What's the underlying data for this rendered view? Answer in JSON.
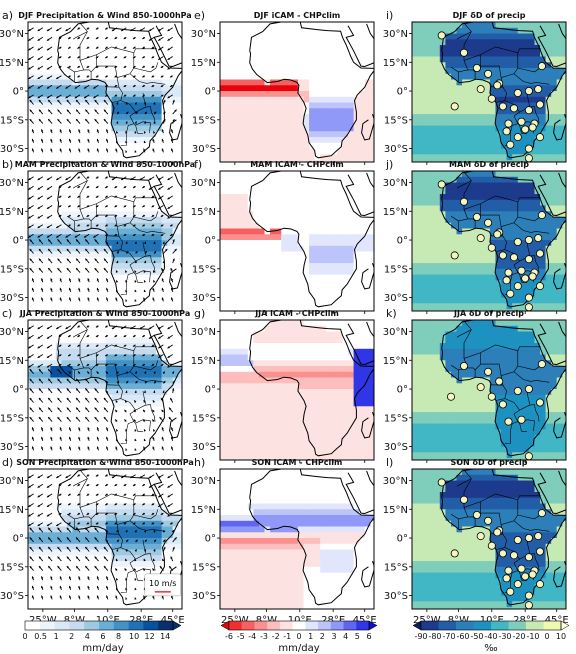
{
  "panels": [
    {
      "letter": "a)",
      "title": "DJF Precipitation & Wind 850-1000hPa",
      "kind": "precip",
      "season": "DJF"
    },
    {
      "letter": "b)",
      "title": "MAM Precipitation & Wind 850-1000hPa",
      "kind": "precip",
      "season": "MAM"
    },
    {
      "letter": "c)",
      "title": "JJA Precipitation & Wind 850-1000hPa",
      "kind": "precip",
      "season": "JJA"
    },
    {
      "letter": "d)",
      "title": "SON Precipitation & Wind 850-1000hPa",
      "kind": "precip",
      "season": "SON"
    },
    {
      "letter": "e)",
      "title": "DJF iCAM - CHPclim",
      "kind": "diff",
      "season": "DJF"
    },
    {
      "letter": "f)",
      "title": "MAM iCAM - CHPclim",
      "kind": "diff",
      "season": "MAM"
    },
    {
      "letter": "g)",
      "title": "JJA iCAM - CHPclim",
      "kind": "diff",
      "season": "JJA"
    },
    {
      "letter": "h)",
      "title": "SON iCAM - CHPclim",
      "kind": "diff",
      "season": "SON"
    },
    {
      "letter": "i)",
      "title": "DJF δD of precip",
      "kind": "dd",
      "season": "DJF"
    },
    {
      "letter": "j)",
      "title": "MAM δD of precip",
      "kind": "dd",
      "season": "MAM"
    },
    {
      "letter": "k)",
      "title": "JJA δD of precip",
      "kind": "dd",
      "season": "JJA"
    },
    {
      "letter": "l)",
      "title": "SON δD of precip",
      "kind": "dd",
      "season": "SON"
    }
  ],
  "axes": {
    "lat_ticks": [
      "30°N",
      "15°N",
      "0°",
      "15°S",
      "30°S"
    ],
    "lon_ticks": [
      "25°W",
      "8°W",
      "10°E",
      "28°E",
      "45°E"
    ],
    "lat_values": [
      30,
      15,
      0,
      -15,
      -30
    ],
    "lon_values": [
      -25,
      -8,
      10,
      28,
      45
    ],
    "lat_range": [
      -37,
      36
    ],
    "lon_range": [
      -33,
      50
    ]
  },
  "wind_key": "10 m/s",
  "colorbars": [
    {
      "name": "precipitation",
      "unit": "mm/day",
      "ticks": [
        "0",
        "0.5",
        "1",
        "2",
        "4",
        "6",
        "8",
        "10",
        "12",
        "14"
      ],
      "colors": [
        "#ffffff",
        "#eef4fb",
        "#dbe9f6",
        "#c6dbef",
        "#9ecae1",
        "#6baed6",
        "#4292c6",
        "#2171b5",
        "#08519c",
        "#08306b"
      ],
      "extend": "max"
    },
    {
      "name": "difference",
      "unit": "mm/day",
      "ticks": [
        "-6",
        "-5",
        "-4",
        "-3",
        "-2",
        "-1",
        "0",
        "1",
        "2",
        "3",
        "4",
        "5",
        "6"
      ],
      "colors": [
        "#e8000b",
        "#f03030",
        "#f76060",
        "#fb9090",
        "#fdbdbd",
        "#fde2e2",
        "#ffffff",
        "#e2e6fd",
        "#bdc4fb",
        "#9099f7",
        "#6066f0",
        "#3036e6",
        "#0b0fd4"
      ],
      "extend": "both"
    },
    {
      "name": "dD",
      "unit": "‰",
      "ticks": [
        "-90",
        "-80",
        "-70",
        "-60",
        "-50",
        "-40",
        "-30",
        "-20",
        "-10",
        "0",
        "10"
      ],
      "colors": [
        "#081d58",
        "#1d3a8c",
        "#225ea8",
        "#2c7fb8",
        "#1d91c0",
        "#41b6c4",
        "#7fcdbb",
        "#c7e9b4",
        "#edf8b1",
        "#ffffd9"
      ],
      "extend": "both"
    }
  ],
  "chart_data": [
    {
      "type": "heatmap",
      "panel": "a",
      "title": "DJF Precipitation & Wind 850-1000hPa",
      "xlabel": "",
      "ylabel": "",
      "unit": "mm/day",
      "rain_band_center_lat": -10,
      "rain_max_mm_day": 10
    },
    {
      "type": "heatmap",
      "panel": "b",
      "title": "MAM Precipitation & Wind 850-1000hPa",
      "unit": "mm/day",
      "rain_band_center_lat": -2,
      "rain_max_mm_day": 8
    },
    {
      "type": "heatmap",
      "panel": "c",
      "title": "JJA Precipitation & Wind 850-1000hPa",
      "unit": "mm/day",
      "rain_band_center_lat": 9,
      "rain_max_mm_day": 12
    },
    {
      "type": "heatmap",
      "panel": "d",
      "title": "SON Precipitation & Wind 850-1000hPa",
      "unit": "mm/day",
      "rain_band_center_lat": 2,
      "rain_max_mm_day": 8
    },
    {
      "type": "heatmap",
      "panel": "e",
      "title": "DJF iCAM - CHPclim",
      "unit": "mm/day",
      "range": [
        -6,
        6
      ]
    },
    {
      "type": "heatmap",
      "panel": "f",
      "title": "MAM iCAM - CHPclim",
      "unit": "mm/day",
      "range": [
        -6,
        6
      ]
    },
    {
      "type": "heatmap",
      "panel": "g",
      "title": "JJA iCAM - CHPclim",
      "unit": "mm/day",
      "range": [
        -6,
        6
      ]
    },
    {
      "type": "heatmap",
      "panel": "h",
      "title": "SON iCAM - CHPclim",
      "unit": "mm/day",
      "range": [
        -6,
        6
      ]
    },
    {
      "type": "scatter",
      "panel": "i",
      "title": "DJF δD of precip",
      "unit": "‰",
      "range": [
        -90,
        10
      ],
      "stations": [
        [
          -17,
          29
        ],
        [
          -5,
          20
        ],
        [
          2,
          12
        ],
        [
          8,
          9
        ],
        [
          14,
          4
        ],
        [
          -10,
          -8
        ],
        [
          4,
          1
        ],
        [
          10,
          -4
        ],
        [
          13,
          3
        ],
        [
          24,
          -1
        ],
        [
          30,
          0
        ],
        [
          35,
          1
        ],
        [
          16,
          -8
        ],
        [
          22,
          -9
        ],
        [
          30,
          -10
        ],
        [
          26,
          -16
        ],
        [
          19,
          -17
        ],
        [
          33,
          -17
        ],
        [
          18,
          -21
        ],
        [
          28,
          -20
        ],
        [
          24,
          -24
        ],
        [
          20,
          -28
        ],
        [
          36,
          -24
        ],
        [
          30,
          -30
        ],
        [
          32,
          -19
        ],
        [
          30,
          -35
        ],
        [
          37,
          13
        ],
        [
          36,
          -7
        ]
      ]
    },
    {
      "type": "scatter",
      "panel": "j",
      "title": "MAM δD of precip",
      "unit": "‰",
      "range": [
        -90,
        10
      ],
      "stations": [
        [
          -17,
          29
        ],
        [
          -5,
          20
        ],
        [
          2,
          12
        ],
        [
          8,
          9
        ],
        [
          14,
          4
        ],
        [
          -10,
          -8
        ],
        [
          4,
          1
        ],
        [
          10,
          -4
        ],
        [
          13,
          3
        ],
        [
          24,
          -1
        ],
        [
          30,
          0
        ],
        [
          35,
          1
        ],
        [
          16,
          -8
        ],
        [
          22,
          -9
        ],
        [
          30,
          -10
        ],
        [
          26,
          -16
        ],
        [
          19,
          -17
        ],
        [
          33,
          -17
        ],
        [
          18,
          -21
        ],
        [
          28,
          -20
        ],
        [
          24,
          -24
        ],
        [
          20,
          -28
        ],
        [
          36,
          -24
        ],
        [
          30,
          -30
        ],
        [
          32,
          -19
        ],
        [
          30,
          -35
        ],
        [
          37,
          13
        ],
        [
          36,
          -7
        ]
      ]
    },
    {
      "type": "scatter",
      "panel": "k",
      "title": "JJA δD of precip",
      "unit": "‰",
      "range": [
        -90,
        10
      ],
      "stations": [
        [
          -5,
          12
        ],
        [
          8,
          9
        ],
        [
          14,
          4
        ],
        [
          4,
          1
        ],
        [
          10,
          -4
        ],
        [
          24,
          -1
        ],
        [
          30,
          0
        ],
        [
          36,
          -7
        ],
        [
          16,
          -8
        ],
        [
          26,
          -16
        ],
        [
          19,
          -17
        ],
        [
          30,
          -35
        ],
        [
          37,
          13
        ],
        [
          -12,
          -4
        ]
      ]
    },
    {
      "type": "scatter",
      "panel": "l",
      "title": "SON δD of precip",
      "unit": "‰",
      "range": [
        -90,
        10
      ],
      "stations": [
        [
          -17,
          29
        ],
        [
          -5,
          20
        ],
        [
          2,
          12
        ],
        [
          8,
          9
        ],
        [
          14,
          4
        ],
        [
          -10,
          -8
        ],
        [
          4,
          1
        ],
        [
          10,
          -4
        ],
        [
          13,
          3
        ],
        [
          24,
          -1
        ],
        [
          30,
          0
        ],
        [
          35,
          1
        ],
        [
          16,
          -8
        ],
        [
          22,
          -9
        ],
        [
          30,
          -10
        ],
        [
          26,
          -16
        ],
        [
          19,
          -17
        ],
        [
          33,
          -17
        ],
        [
          18,
          -21
        ],
        [
          28,
          -20
        ],
        [
          24,
          -24
        ],
        [
          20,
          -28
        ],
        [
          36,
          -24
        ],
        [
          30,
          -30
        ],
        [
          32,
          -19
        ],
        [
          30,
          -35
        ],
        [
          37,
          13
        ],
        [
          36,
          -7
        ]
      ]
    }
  ]
}
